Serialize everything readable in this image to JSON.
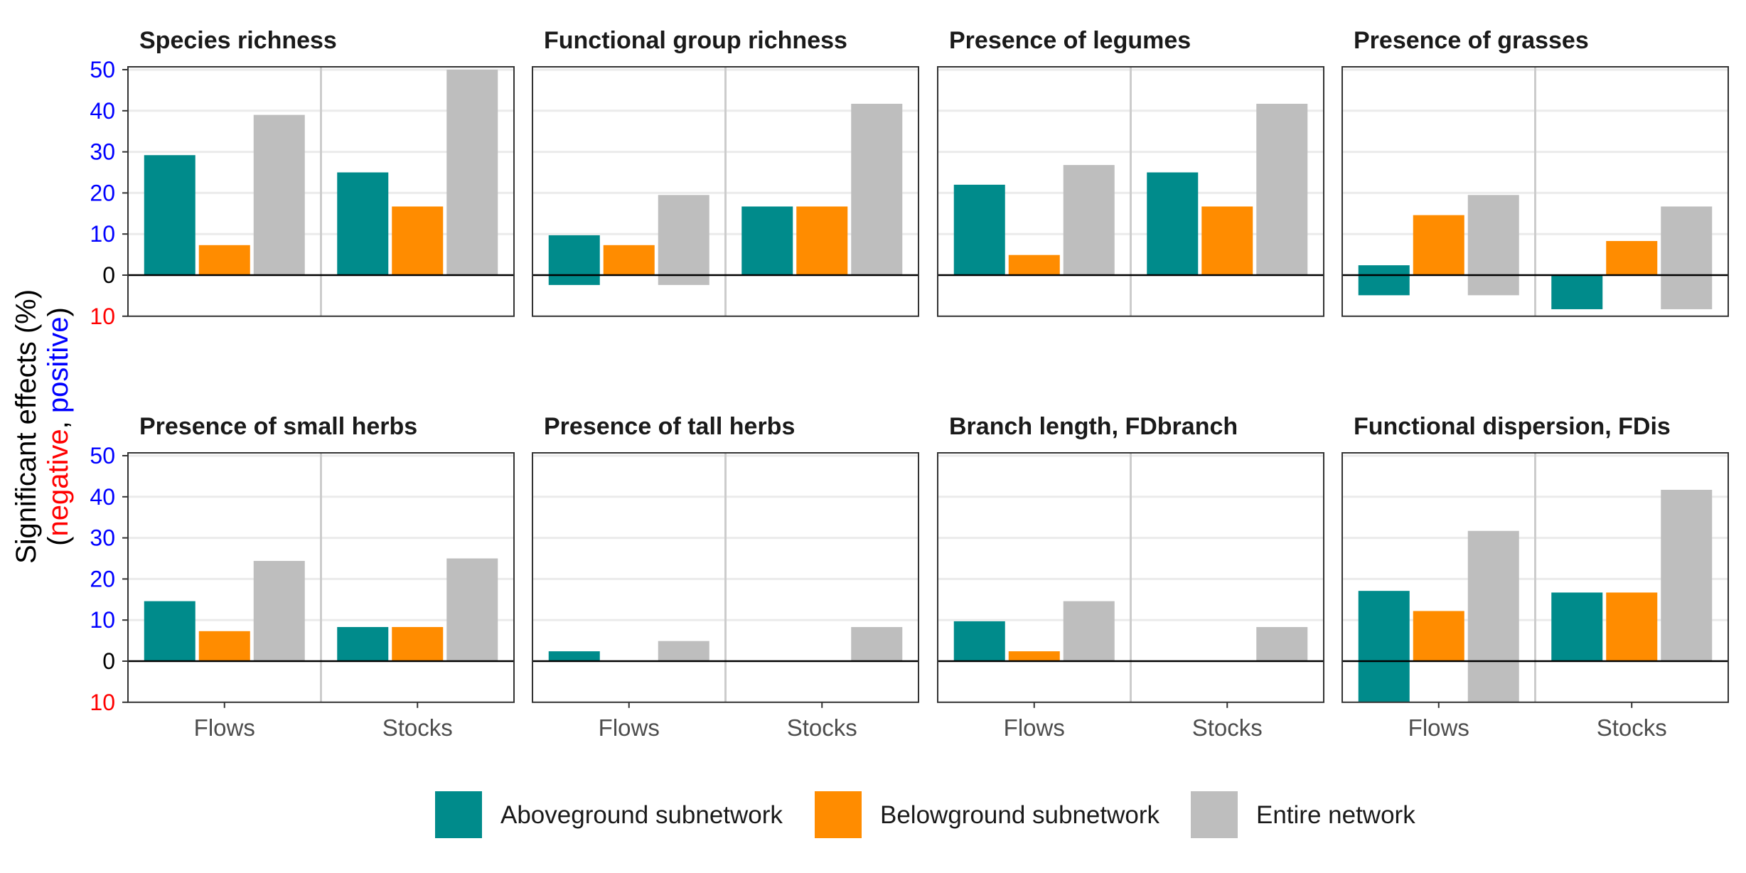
{
  "chart_data": {
    "type": "bar",
    "facet_layout": "2x4",
    "y_axis": {
      "title_line1": "Significant effects (%)",
      "title_line2": {
        "open": "(",
        "negative": "negative",
        "sep": ", ",
        "positive": "positive",
        "close": ")"
      },
      "ylim": [
        -10,
        50
      ],
      "ticks": [
        50,
        40,
        30,
        20,
        10,
        0
      ],
      "negative_ticks": [
        10
      ],
      "tick_labels": [
        "50",
        "40",
        "30",
        "20",
        "10",
        "0",
        "10"
      ],
      "positive_tick_color": "#0000ff",
      "zero_tick_color": "#000000",
      "negative_tick_color": "#ff0000",
      "grid": true
    },
    "categories": [
      "Flows",
      "Stocks"
    ],
    "series_names": [
      "Aboveground subnetwork",
      "Belowground subnetwork",
      "Entire network"
    ],
    "colors": [
      "#008b8b",
      "#ff8c00",
      "#bebebe"
    ],
    "legend_position": "bottom",
    "facets": [
      {
        "title": "Species richness",
        "positive": [
          [
            29.2,
            7.3,
            39.0
          ],
          [
            25.0,
            16.7,
            50.0
          ]
        ],
        "negative": [
          [
            0,
            0,
            0
          ],
          [
            0,
            0,
            0
          ]
        ]
      },
      {
        "title": "Functional group richness",
        "positive": [
          [
            9.7,
            7.3,
            19.5
          ],
          [
            16.7,
            16.7,
            41.7
          ]
        ],
        "negative": [
          [
            2.4,
            0,
            2.4
          ],
          [
            0,
            0,
            0
          ]
        ]
      },
      {
        "title": "Presence of legumes",
        "positive": [
          [
            22.0,
            4.9,
            26.8
          ],
          [
            25.0,
            16.7,
            41.7
          ]
        ],
        "negative": [
          [
            0,
            0,
            0
          ],
          [
            0,
            0,
            0
          ]
        ]
      },
      {
        "title": "Presence of grasses",
        "positive": [
          [
            2.4,
            14.6,
            19.5
          ],
          [
            0,
            8.3,
            16.7
          ]
        ],
        "negative": [
          [
            4.9,
            0,
            4.9
          ],
          [
            8.3,
            0,
            8.3
          ]
        ]
      },
      {
        "title": "Presence of small herbs",
        "positive": [
          [
            14.6,
            7.3,
            24.4
          ],
          [
            8.3,
            8.3,
            25.0
          ]
        ],
        "negative": [
          [
            0,
            0,
            0
          ],
          [
            0,
            0,
            0
          ]
        ]
      },
      {
        "title": "Presence of tall herbs",
        "positive": [
          [
            2.4,
            0,
            4.9
          ],
          [
            0,
            0,
            8.3
          ]
        ],
        "negative": [
          [
            0,
            0,
            0
          ],
          [
            0,
            0,
            0
          ]
        ]
      },
      {
        "title": "Branch length, FDbranch",
        "positive": [
          [
            9.7,
            2.4,
            14.6
          ],
          [
            0,
            0,
            8.3
          ]
        ],
        "negative": [
          [
            0,
            0,
            0
          ],
          [
            0,
            0,
            0
          ]
        ]
      },
      {
        "title": "Functional dispersion, FDis",
        "positive": [
          [
            17.1,
            12.2,
            31.7
          ],
          [
            16.7,
            16.7,
            41.7
          ]
        ],
        "negative": [
          [
            10,
            0,
            10
          ],
          [
            0,
            0,
            0
          ]
        ]
      }
    ]
  }
}
